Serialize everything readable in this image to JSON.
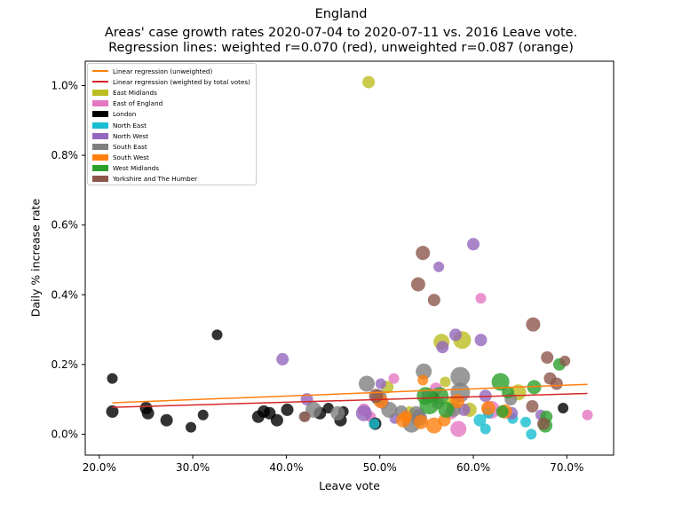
{
  "chart_data": {
    "type": "scatter",
    "title": "England",
    "subtitle": "Areas' case growth rates 2020-07-04 to 2020-07-11 vs. 2016 Leave vote.",
    "subtitle2": "Regression lines: weighted r=0.070 (red), unweighted r=0.087 (orange)",
    "xlabel": "Leave vote",
    "ylabel": "Daily % increase rate",
    "xlim": [
      18.5,
      75.0
    ],
    "ylim": [
      -0.06,
      1.07
    ],
    "xticks": [
      20,
      30,
      40,
      50,
      60,
      70
    ],
    "xtick_labels": [
      "20.0%",
      "30.0%",
      "40.0%",
      "50.0%",
      "60.0%",
      "70.0%"
    ],
    "yticks": [
      0.0,
      0.2,
      0.4,
      0.6,
      0.8,
      1.0
    ],
    "ytick_labels": [
      "0.0%",
      "0.2%",
      "0.4%",
      "0.6%",
      "0.8%",
      "1.0%"
    ],
    "grid": false,
    "legend_position": "top-left",
    "regression_lines": [
      {
        "name": "Linear regression (unweighted)",
        "color": "#ff7f0e",
        "x": [
          21.4,
          72.2
        ],
        "y": [
          0.09,
          0.143
        ]
      },
      {
        "name": "Linear regression (weighted by total votes)",
        "color": "#d62728",
        "x": [
          21.4,
          72.2
        ],
        "y": [
          0.077,
          0.117
        ]
      }
    ],
    "series": [
      {
        "name": "East Midlands",
        "color": "#bcbd22",
        "points": [
          [
            48.8,
            1.01,
            7
          ],
          [
            56.6,
            0.265,
            9
          ],
          [
            58.8,
            0.27,
            10
          ],
          [
            50.8,
            0.135,
            7
          ],
          [
            57.0,
            0.15,
            6
          ],
          [
            59.6,
            0.07,
            8
          ],
          [
            64.8,
            0.12,
            9
          ],
          [
            57.8,
            0.09,
            8
          ],
          [
            53.2,
            0.065,
            6
          ]
        ]
      },
      {
        "name": "East of England",
        "color": "#e377c2",
        "points": [
          [
            60.8,
            0.39,
            6
          ],
          [
            51.5,
            0.16,
            6
          ],
          [
            48.3,
            0.07,
            7
          ],
          [
            72.2,
            0.055,
            6
          ],
          [
            58.4,
            0.015,
            9
          ],
          [
            61.9,
            0.07,
            10
          ],
          [
            50.3,
            0.09,
            7
          ],
          [
            57.6,
            0.06,
            7
          ],
          [
            56.0,
            0.13,
            7
          ],
          [
            49.0,
            0.05,
            6
          ]
        ]
      },
      {
        "name": "London",
        "color": "#000000",
        "points": [
          [
            21.4,
            0.16,
            6
          ],
          [
            21.4,
            0.065,
            7
          ],
          [
            25.0,
            0.075,
            7
          ],
          [
            25.2,
            0.06,
            7
          ],
          [
            27.2,
            0.04,
            7
          ],
          [
            29.8,
            0.02,
            6
          ],
          [
            31.1,
            0.055,
            6
          ],
          [
            32.6,
            0.285,
            6
          ],
          [
            37.0,
            0.05,
            7
          ],
          [
            37.6,
            0.065,
            7
          ],
          [
            38.2,
            0.06,
            7
          ],
          [
            39.0,
            0.04,
            7
          ],
          [
            40.1,
            0.07,
            7
          ],
          [
            43.6,
            0.06,
            7
          ],
          [
            44.5,
            0.075,
            6
          ],
          [
            45.8,
            0.04,
            7
          ],
          [
            46.1,
            0.065,
            6
          ],
          [
            69.6,
            0.075,
            6
          ],
          [
            49.5,
            0.03,
            7
          ],
          [
            55.8,
            0.105,
            6
          ]
        ]
      },
      {
        "name": "North East",
        "color": "#17becf",
        "points": [
          [
            49.4,
            0.03,
            6
          ],
          [
            60.7,
            0.04,
            7
          ],
          [
            61.3,
            0.015,
            6
          ],
          [
            64.2,
            0.045,
            6
          ],
          [
            65.6,
            0.035,
            6
          ],
          [
            66.2,
            0.0,
            6
          ],
          [
            61.6,
            0.06,
            6
          ]
        ]
      },
      {
        "name": "North West",
        "color": "#9467bd",
        "points": [
          [
            39.6,
            0.215,
            7
          ],
          [
            56.3,
            0.48,
            6
          ],
          [
            60.0,
            0.545,
            7
          ],
          [
            58.1,
            0.285,
            7
          ],
          [
            56.7,
            0.25,
            7
          ],
          [
            60.8,
            0.27,
            7
          ],
          [
            42.2,
            0.1,
            7
          ],
          [
            50.1,
            0.145,
            6
          ],
          [
            48.3,
            0.06,
            9
          ],
          [
            55.2,
            0.11,
            8
          ],
          [
            61.3,
            0.11,
            7
          ],
          [
            64.1,
            0.06,
            7
          ],
          [
            67.2,
            0.055,
            6
          ],
          [
            59.0,
            0.07,
            7
          ],
          [
            54.2,
            0.055,
            7
          ],
          [
            51.6,
            0.045,
            6
          ]
        ]
      },
      {
        "name": "South East",
        "color": "#7f7f7f",
        "points": [
          [
            48.6,
            0.145,
            9
          ],
          [
            54.7,
            0.18,
            9
          ],
          [
            58.6,
            0.165,
            11
          ],
          [
            58.6,
            0.12,
            11
          ],
          [
            51.0,
            0.07,
            9
          ],
          [
            53.4,
            0.03,
            10
          ],
          [
            54.2,
            0.045,
            9
          ],
          [
            45.5,
            0.06,
            8
          ],
          [
            42.9,
            0.07,
            9
          ],
          [
            49.9,
            0.105,
            9
          ],
          [
            53.9,
            0.06,
            8
          ],
          [
            57.9,
            0.07,
            8
          ],
          [
            64.0,
            0.1,
            7
          ],
          [
            41.9,
            0.05,
            6
          ],
          [
            52.3,
            0.065,
            7
          ],
          [
            56.2,
            0.09,
            7
          ]
        ]
      },
      {
        "name": "South West",
        "color": "#ff7f0e",
        "points": [
          [
            54.6,
            0.155,
            6
          ],
          [
            55.8,
            0.025,
            9
          ],
          [
            52.5,
            0.04,
            8
          ],
          [
            54.4,
            0.035,
            8
          ],
          [
            50.1,
            0.095,
            8
          ],
          [
            58.3,
            0.095,
            8
          ],
          [
            61.6,
            0.075,
            8
          ],
          [
            52.8,
            0.05,
            7
          ],
          [
            56.9,
            0.04,
            7
          ],
          [
            63.4,
            0.065,
            8
          ]
        ]
      },
      {
        "name": "West Midlands",
        "color": "#2ca02c",
        "points": [
          [
            62.9,
            0.15,
            10
          ],
          [
            66.5,
            0.135,
            8
          ],
          [
            69.2,
            0.2,
            7
          ],
          [
            67.7,
            0.025,
            8
          ],
          [
            67.8,
            0.05,
            7
          ],
          [
            55.3,
            0.085,
            11
          ],
          [
            54.9,
            0.11,
            10
          ],
          [
            57.1,
            0.07,
            9
          ],
          [
            63.1,
            0.065,
            7
          ],
          [
            56.4,
            0.11,
            10
          ],
          [
            63.7,
            0.12,
            7
          ]
        ]
      },
      {
        "name": "Yorkshire and The Humber",
        "color": "#8c564b",
        "points": [
          [
            54.6,
            0.52,
            8
          ],
          [
            54.1,
            0.43,
            8
          ],
          [
            55.8,
            0.385,
            7
          ],
          [
            66.4,
            0.315,
            8
          ],
          [
            67.9,
            0.22,
            7
          ],
          [
            69.8,
            0.21,
            6
          ],
          [
            68.2,
            0.16,
            7
          ],
          [
            68.9,
            0.145,
            7
          ],
          [
            66.3,
            0.08,
            7
          ],
          [
            67.5,
            0.03,
            7
          ],
          [
            42.0,
            0.05,
            6
          ],
          [
            49.6,
            0.11,
            8
          ]
        ]
      }
    ]
  }
}
